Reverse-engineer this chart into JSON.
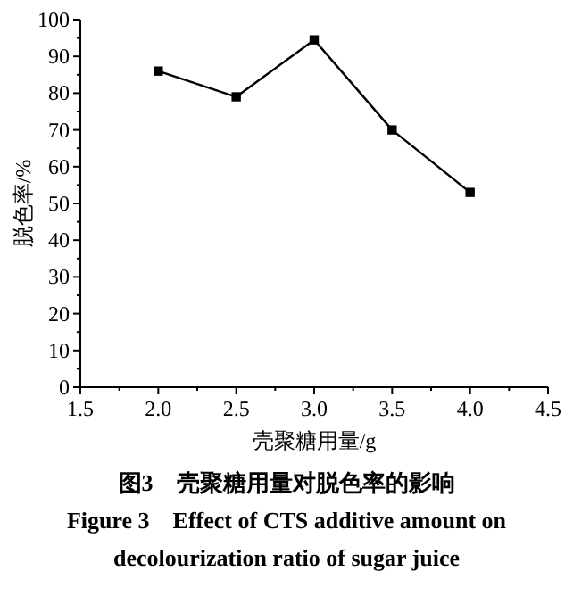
{
  "chart_data": {
    "type": "line",
    "x": [
      2.0,
      2.5,
      3.0,
      3.5,
      4.0
    ],
    "series": [
      {
        "color": "#000000",
        "values": [
          86,
          79,
          94.5,
          70,
          53
        ]
      }
    ],
    "xlabel": "壳聚糖用量/g",
    "ylabel": "脱色率/%",
    "xlim": [
      1.5,
      4.5
    ],
    "xticks": [
      1.5,
      {
        "value": 2,
        "label": "2.0"
      },
      2.5,
      {
        "value": 3,
        "label": "3.0"
      },
      3.5,
      {
        "value": 4,
        "label": "4.0"
      },
      4.5
    ],
    "ylim": [
      0,
      100
    ],
    "yticks": [
      0,
      10,
      20,
      30,
      40,
      50,
      60,
      70,
      80,
      90,
      100
    ],
    "marker": "square",
    "line_style": "solid",
    "grid": false,
    "annotations": [
      "图3　壳聚糖用量对脱色率的影响",
      "Figure 3　Effect of CTS additive amount on decolourization ratio of sugar juice"
    ]
  }
}
